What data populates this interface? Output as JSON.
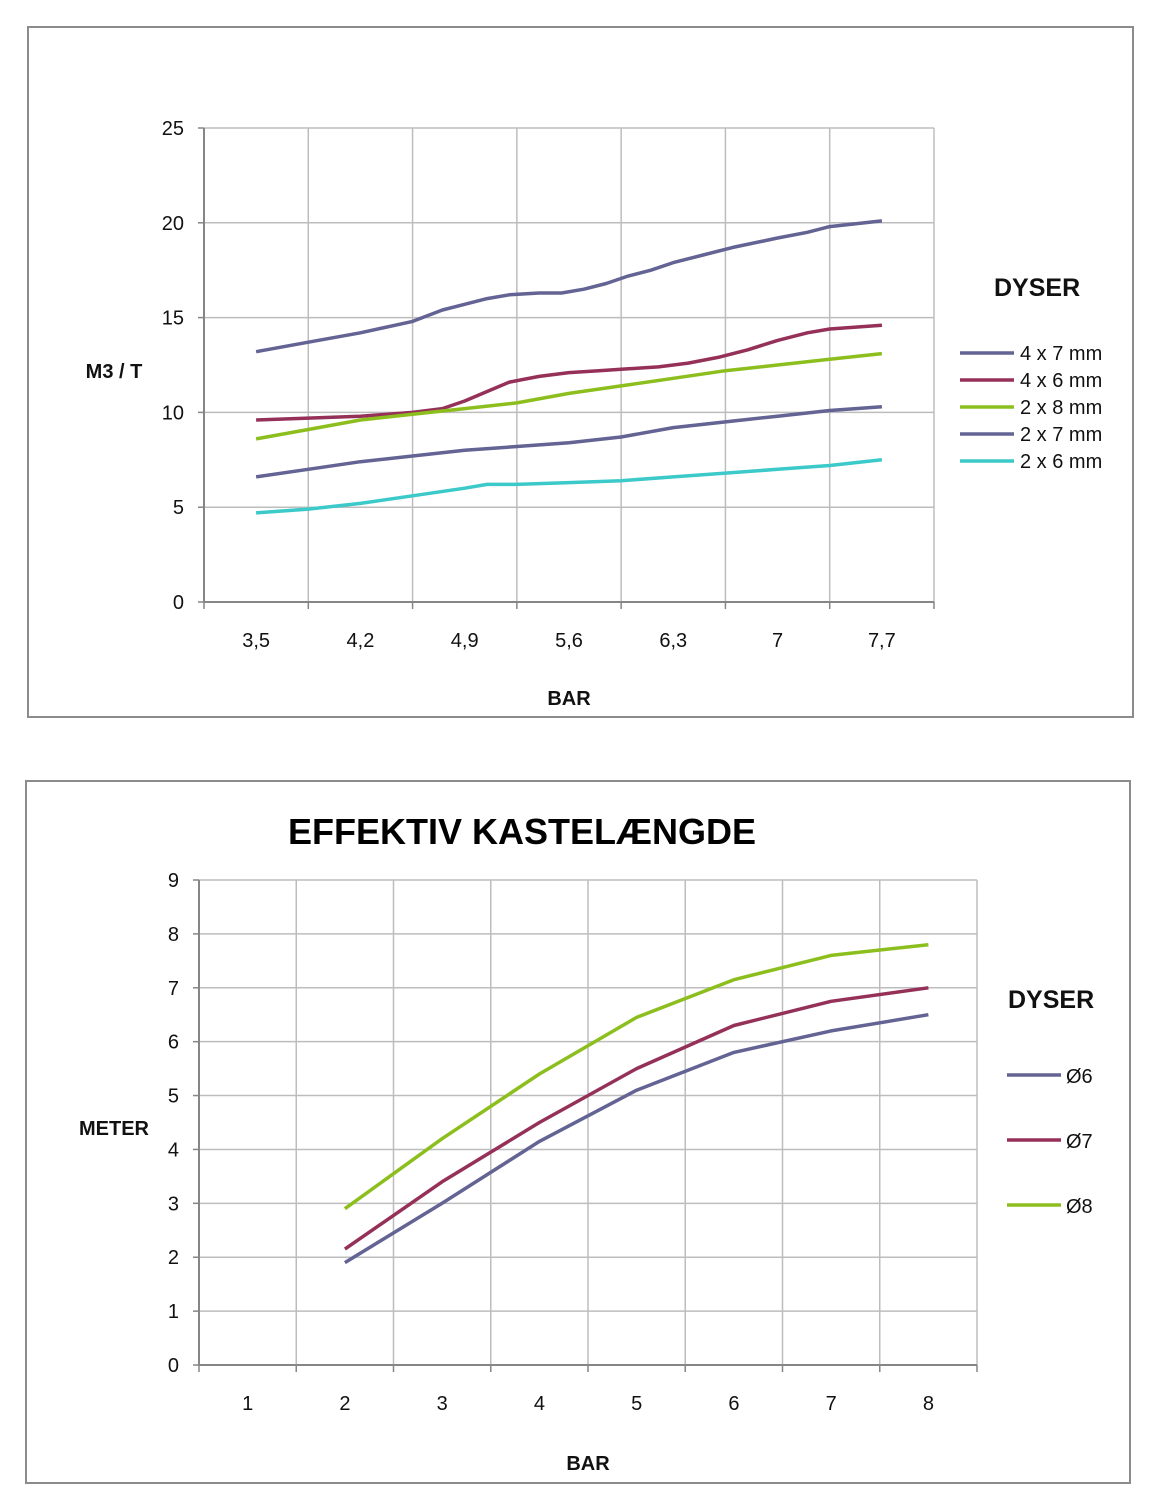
{
  "chart_data": [
    {
      "type": "line",
      "title": "",
      "xlabel": "BAR",
      "ylabel": "M3 / T",
      "legend_title": "DYSER",
      "legend_position": "right",
      "grid": true,
      "categories": [
        "3,5",
        "4,2",
        "4,9",
        "5,6",
        "6,3",
        "7",
        "7,7"
      ],
      "ylim": [
        0,
        25
      ],
      "yticks": [
        0,
        5,
        10,
        15,
        20,
        25
      ],
      "x": [
        3.5,
        3.85,
        4.2,
        4.55,
        4.75,
        4.9,
        5.05,
        5.25,
        5.4,
        5.6,
        5.8,
        5.95,
        6.1,
        6.3,
        6.5,
        6.7,
        6.85,
        7.0,
        7.2,
        7.35,
        7.7
      ],
      "series": [
        {
          "name": "4 x 7 mm",
          "color": "#636394",
          "x": [
            3.5,
            3.85,
            4.2,
            4.55,
            4.75,
            4.9,
            5.05,
            5.2,
            5.4,
            5.55,
            5.7,
            5.85,
            6.0,
            6.15,
            6.3,
            6.5,
            6.7,
            7.0,
            7.2,
            7.35,
            7.7
          ],
          "values": [
            13.2,
            13.7,
            14.2,
            14.8,
            15.4,
            15.7,
            16.0,
            16.2,
            16.3,
            16.3,
            16.5,
            16.8,
            17.2,
            17.5,
            17.9,
            18.3,
            18.7,
            19.2,
            19.5,
            19.8,
            20.1
          ]
        },
        {
          "name": "4 x 6 mm",
          "color": "#953158",
          "x": [
            3.5,
            3.85,
            4.2,
            4.55,
            4.75,
            4.9,
            5.05,
            5.2,
            5.4,
            5.6,
            5.8,
            6.0,
            6.2,
            6.4,
            6.6,
            6.8,
            7.0,
            7.2,
            7.35,
            7.7
          ],
          "values": [
            9.6,
            9.7,
            9.8,
            10.0,
            10.2,
            10.6,
            11.1,
            11.6,
            11.9,
            12.1,
            12.2,
            12.3,
            12.4,
            12.6,
            12.9,
            13.3,
            13.8,
            14.2,
            14.4,
            14.6
          ],
          "_note": "values aligned to x positions"
        },
        {
          "name": "2 x 8 mm",
          "color": "#8cbf1e",
          "x": [
            3.5,
            3.85,
            4.2,
            4.55,
            4.9,
            5.25,
            5.6,
            5.95,
            6.3,
            6.65,
            7.0,
            7.35,
            7.7
          ],
          "values": [
            8.6,
            9.1,
            9.6,
            9.9,
            10.2,
            10.5,
            11.0,
            11.4,
            11.8,
            12.2,
            12.5,
            12.8,
            13.1
          ]
        },
        {
          "name": "2 x 7 mm",
          "color": "#636394",
          "x": [
            3.5,
            3.85,
            4.2,
            4.55,
            4.9,
            5.25,
            5.6,
            5.95,
            6.3,
            6.65,
            7.0,
            7.35,
            7.7
          ],
          "values": [
            6.6,
            7.0,
            7.4,
            7.7,
            8.0,
            8.2,
            8.4,
            8.7,
            9.2,
            9.5,
            9.8,
            10.1,
            10.3
          ]
        },
        {
          "name": "2 x 6 mm",
          "color": "#3cc9c9",
          "x": [
            3.5,
            3.85,
            4.2,
            4.55,
            4.9,
            5.05,
            5.25,
            5.6,
            5.95,
            6.3,
            6.65,
            7.0,
            7.35,
            7.7
          ],
          "values": [
            4.7,
            4.9,
            5.2,
            5.6,
            6.0,
            6.2,
            6.2,
            6.3,
            6.4,
            6.6,
            6.8,
            7.0,
            7.2,
            7.5
          ]
        }
      ]
    },
    {
      "type": "line",
      "title": "EFFEKTIV KASTELÆNGDE",
      "xlabel": "BAR",
      "ylabel": "METER",
      "legend_title": "DYSER",
      "legend_position": "right",
      "grid": true,
      "categories": [
        "1",
        "2",
        "3",
        "4",
        "5",
        "6",
        "7",
        "8"
      ],
      "ylim": [
        0,
        9
      ],
      "yticks": [
        0,
        1,
        2,
        3,
        4,
        5,
        6,
        7,
        8,
        9
      ],
      "series": [
        {
          "name": "Ø6",
          "color": "#636394",
          "x": [
            2,
            3,
            4,
            5,
            6,
            7,
            8
          ],
          "values": [
            1.9,
            3.0,
            4.15,
            5.1,
            5.8,
            6.2,
            6.5
          ]
        },
        {
          "name": "Ø7",
          "color": "#953158",
          "x": [
            2,
            3,
            4,
            5,
            6,
            7,
            8
          ],
          "values": [
            2.15,
            3.4,
            4.5,
            5.5,
            6.3,
            6.75,
            7.0
          ]
        },
        {
          "name": "Ø8",
          "color": "#8cbf1e",
          "x": [
            2,
            3,
            4,
            5,
            6,
            7,
            8
          ],
          "values": [
            2.9,
            4.2,
            5.4,
            6.45,
            7.15,
            7.6,
            7.8
          ]
        }
      ]
    }
  ]
}
